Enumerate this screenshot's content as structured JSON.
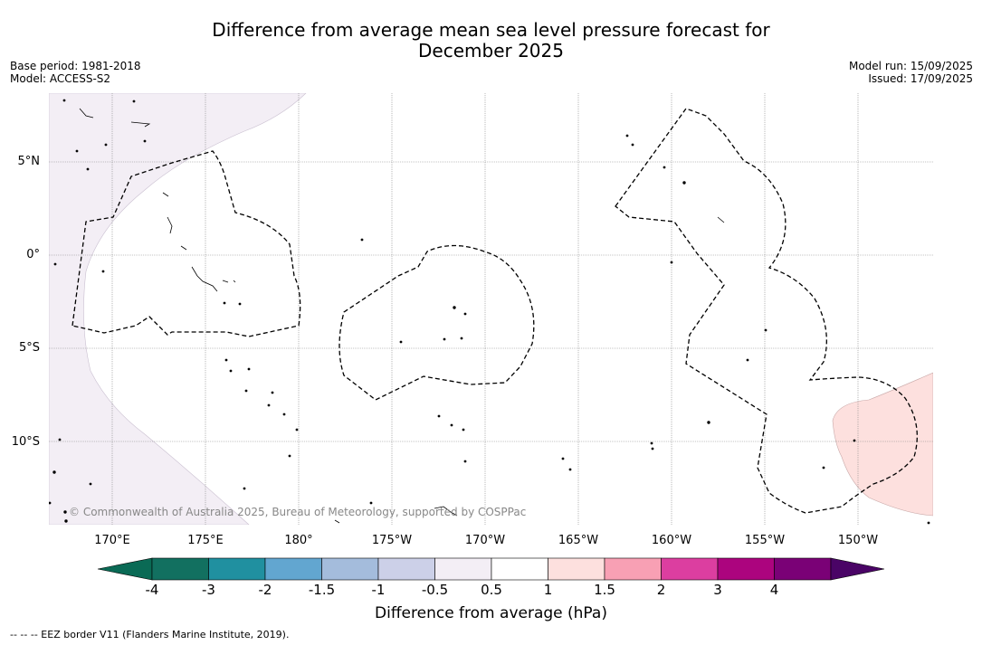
{
  "title": {
    "line1": "Difference from average mean sea level pressure forecast for",
    "line2": "December 2025"
  },
  "meta_left": {
    "base_period": "Base period: 1981-2018",
    "model": "Model: ACCESS-S2"
  },
  "meta_right": {
    "model_run": "Model run: 15/09/2025",
    "issued": "Issued: 17/09/2025"
  },
  "map": {
    "latitude_labels": [
      "5°N",
      "0°",
      "5°S",
      "10°S"
    ],
    "longitude_labels": [
      "170°E",
      "175°E",
      "180°",
      "175°W",
      "170°W",
      "165°W",
      "160°W",
      "155°W",
      "150°W"
    ],
    "copyright": "© Commonwealth of Australia 2025, Bureau of Meteorology, supported by COSPPac",
    "colors": {
      "west_anomaly_fill": "#f3eef5",
      "east_anomaly_fill": "#fde0de",
      "grid": "#888888"
    }
  },
  "colorbar": {
    "title": "Difference from average (hPa)",
    "ticks": [
      "-4",
      "-3",
      "-2",
      "-1.5",
      "-1",
      "-0.5",
      "0.5",
      "1",
      "1.5",
      "2",
      "3",
      "4"
    ],
    "colors": [
      "#127060",
      "#2090a0",
      "#62a6d0",
      "#a4bcdc",
      "#ccd0e8",
      "#f3eef5",
      "#ffffff",
      "#fde0de",
      "#f8a0b4",
      "#dc3ea0",
      "#ac047e",
      "#7a0176"
    ],
    "under_color": "#0a6a55",
    "over_color": "#4a0466"
  },
  "footnote": "--  --  -- EEZ border V11 (Flanders Marine Institute, 2019)."
}
